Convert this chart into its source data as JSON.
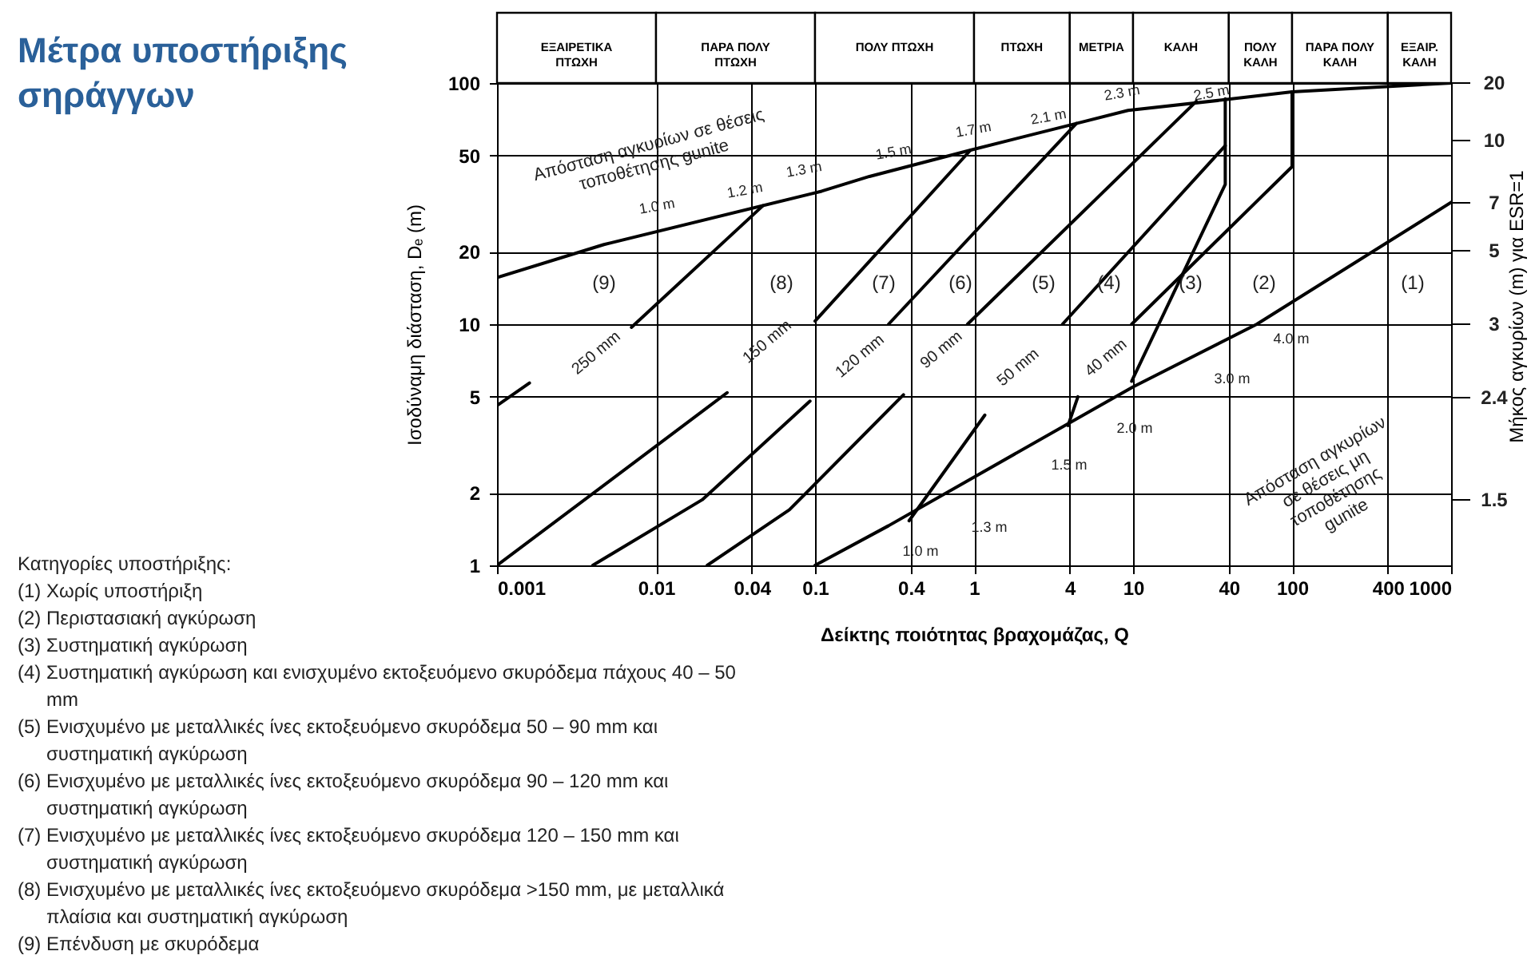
{
  "chart_data": {
    "type": "line",
    "title": "Μέτρα υποστήριξης\nσηράγγων",
    "xlabel": "Δείκτης ποιότητας βραχομάζας, Q",
    "ylabel": "Ισοδύναμη διάσταση, Dₑ (m)",
    "y2label": "Μήκος αγκυρίων (m) για ESR=1",
    "log": "xy",
    "grid": true,
    "xlim": [
      0.001,
      1000
    ],
    "xticks": [
      0.001,
      0.01,
      0.04,
      0.1,
      0.4,
      1,
      4,
      10,
      40,
      100,
      400,
      1000
    ],
    "ylim": [
      1,
      100
    ],
    "yticks": [
      1,
      2,
      5,
      10,
      20,
      50,
      100
    ],
    "series": [
      {
        "color": "#000000",
        "x": [
          0.001,
          0.0047,
          0.11,
          0.22,
          0.95,
          4.4,
          9.3,
          36,
          100,
          1000
        ],
        "values": [
          15.6,
          21.4,
          35.6,
          41,
          52.7,
          68,
          77,
          85,
          92,
          100
        ]
      },
      {
        "color": "#000000",
        "x": [
          0.1,
          0.29,
          10,
          60,
          1000
        ],
        "values": [
          1,
          1.46,
          5.5,
          10,
          32
        ]
      },
      {
        "color": "#000000",
        "x": [
          0.001,
          0.028
        ],
        "values": [
          1,
          5.2
        ]
      },
      {
        "color": "#000000",
        "x": [
          0.004,
          0.0195,
          0.093
        ],
        "values": [
          1,
          1.87,
          4.8
        ]
      },
      {
        "color": "#000000",
        "x": [
          0.021,
          0.069,
          0.36
        ],
        "values": [
          1,
          1.7,
          5.1
        ]
      },
      {
        "color": "#000000",
        "x": [
          0.39,
          1.17
        ],
        "values": [
          1.53,
          4.2
        ]
      },
      {
        "color": "#000000",
        "x": [
          3.9,
          4.5
        ],
        "values": [
          3.8,
          5
        ]
      },
      {
        "color": "#000000",
        "x": [
          0.001,
          0.0016
        ],
        "values": [
          4.6,
          5.7
        ]
      },
      {
        "color": "#000000",
        "x": [
          0.007,
          0.047
        ],
        "values": [
          9.7,
          31
        ]
      },
      {
        "color": "#000000",
        "x": [
          0.1,
          0.95
        ],
        "values": [
          10.3,
          52.7
        ]
      },
      {
        "color": "#000000",
        "x": [
          0.29,
          4.4
        ],
        "values": [
          10,
          68
        ]
      },
      {
        "color": "#000000",
        "x": [
          0.91,
          25
        ],
        "values": [
          10,
          84
        ]
      },
      {
        "color": "#000000",
        "x": [
          3.6,
          38
        ],
        "values": [
          10,
          55
        ]
      },
      {
        "color": "#000000",
        "x": [
          9.8,
          38,
          38
        ],
        "values": [
          5.8,
          38,
          86
        ]
      },
      {
        "color": "#000000",
        "x": [
          9.8,
          100,
          100
        ],
        "values": [
          10,
          45,
          92
        ]
      }
    ],
    "annotations": [
      "Απόσταση αγκυρίων σε θέσεις\nτοποθέτησης gunite",
      "Απόσταση αγκυρίων\nσε θέσεις μη\nτοποθέτησης\ngunite",
      "(9)",
      "(8)",
      "(7)",
      "(6)",
      "(5)",
      "(4)",
      "(3)",
      "(2)",
      "(1)",
      "250 mm",
      "150 mm",
      "120 mm",
      "90 mm",
      "50 mm",
      "40 mm",
      "1.0 m",
      "1.2 m",
      "1.3 m",
      "1.5 m",
      "1.7 m",
      "2.1 m",
      "2.3 m",
      "2.5 m",
      "1.0 m",
      "1.3 m",
      "1.5 m",
      "2.0 m",
      "3.0 m",
      "4.0 m",
      "20",
      "10",
      "7",
      "5",
      "3",
      "2.4",
      "1.5",
      "ΕΞΑΙΡΕΤΙΚΑ\nΠΤΩΧΗ",
      "ΠΑΡΑ ΠΟΛΥ\nΠΤΩΧΗ",
      "ΠΟΛΥ ΠΤΩΧΗ",
      "ΠΤΩΧΗ",
      "ΜΕΤΡΙΑ",
      "ΚΑΛΗ",
      "ΠΟΛΥ\nΚΑΛΗ",
      "ΠΑΡΑ ΠΟΛΥ\nΚΑΛΗ",
      "ΕΞΑΙΡ.\nΚΑΛΗ",
      "Κατηγορίες υποστήριξης:",
      "(1) Χωρίς υποστήριξη",
      "(2) Περιστασιακή αγκύρωση",
      "(3) Συστηματική αγκύρωση",
      "(4) Συστηματική αγκύρωση και ενισχυμένο εκτοξευόμενο σκυρόδεμα πάχους 40 – 50 mm",
      "(5) Ενισχυμένο με μεταλλικές ίνες εκτοξευόμενο σκυρόδεμα 50 – 90 mm και συστηματική αγκύρωση",
      "(6) Ενισχυμένο με μεταλλικές ίνες εκτοξευόμενο σκυρόδεμα 90 – 120 mm και συστηματική αγκύρωση",
      "(7) Ενισχυμένο με μεταλλικές ίνες εκτοξευόμενο σκυρόδεμα 120 – 150 mm και συστηματική αγκύρωση",
      "(8) Ενισχυμένο με μεταλλικές ίνες εκτοξευόμενο σκυρόδεμα >150 mm, με μεταλλικά πλαίσια και συστηματική αγκύρωση",
      "(9) Επένδυση με σκυρόδεμα"
    ]
  }
}
